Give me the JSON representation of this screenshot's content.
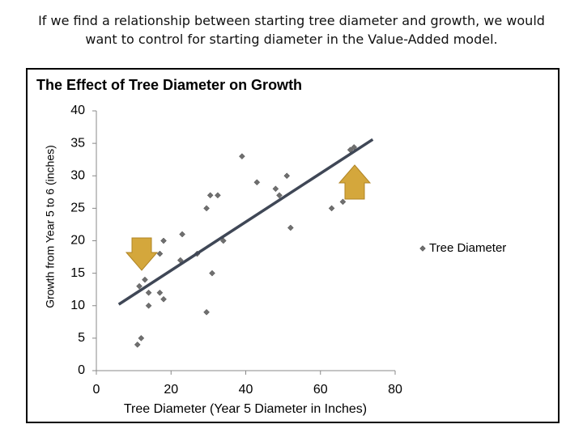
{
  "heading": [
    "If we find a relationship between starting tree diameter and growth, we would",
    "want to control for starting diameter in the Value-Added model."
  ],
  "chart_data": {
    "type": "scatter",
    "title": "The Effect of Tree Diameter on Growth",
    "x_label": "Tree Diameter (Year 5 Diameter in Inches)",
    "y_label": "Growth from Year 5 to 6 (inches)",
    "series": [
      {
        "name": "Tree Diameter",
        "color": "#6f6f6f",
        "x": [
          11,
          12,
          11.5,
          13,
          14,
          14,
          17,
          17,
          18,
          18,
          22.5,
          23,
          27,
          29.5,
          29.5,
          30.5,
          32.5,
          31,
          34,
          39,
          43,
          48,
          49,
          51,
          52,
          63,
          66,
          68,
          69
        ],
        "values": [
          4,
          5,
          13,
          14,
          12,
          10,
          18,
          12,
          11,
          20,
          17,
          21,
          18,
          25,
          9,
          27,
          27,
          15,
          20,
          33,
          29,
          28,
          27,
          30,
          22,
          25,
          26,
          34,
          34.4
        ]
      }
    ],
    "trendline": {
      "x": [
        6,
        74
      ],
      "values": [
        10.2,
        35.6
      ],
      "color": "#3f4756"
    },
    "xlim": [
      0,
      80
    ],
    "xticks": [
      0,
      20,
      40,
      60,
      80
    ],
    "ylim": [
      0,
      40
    ],
    "yticks": [
      0,
      5,
      10,
      15,
      20,
      25,
      30,
      35,
      40
    ],
    "grid": false,
    "legend": "right"
  }
}
